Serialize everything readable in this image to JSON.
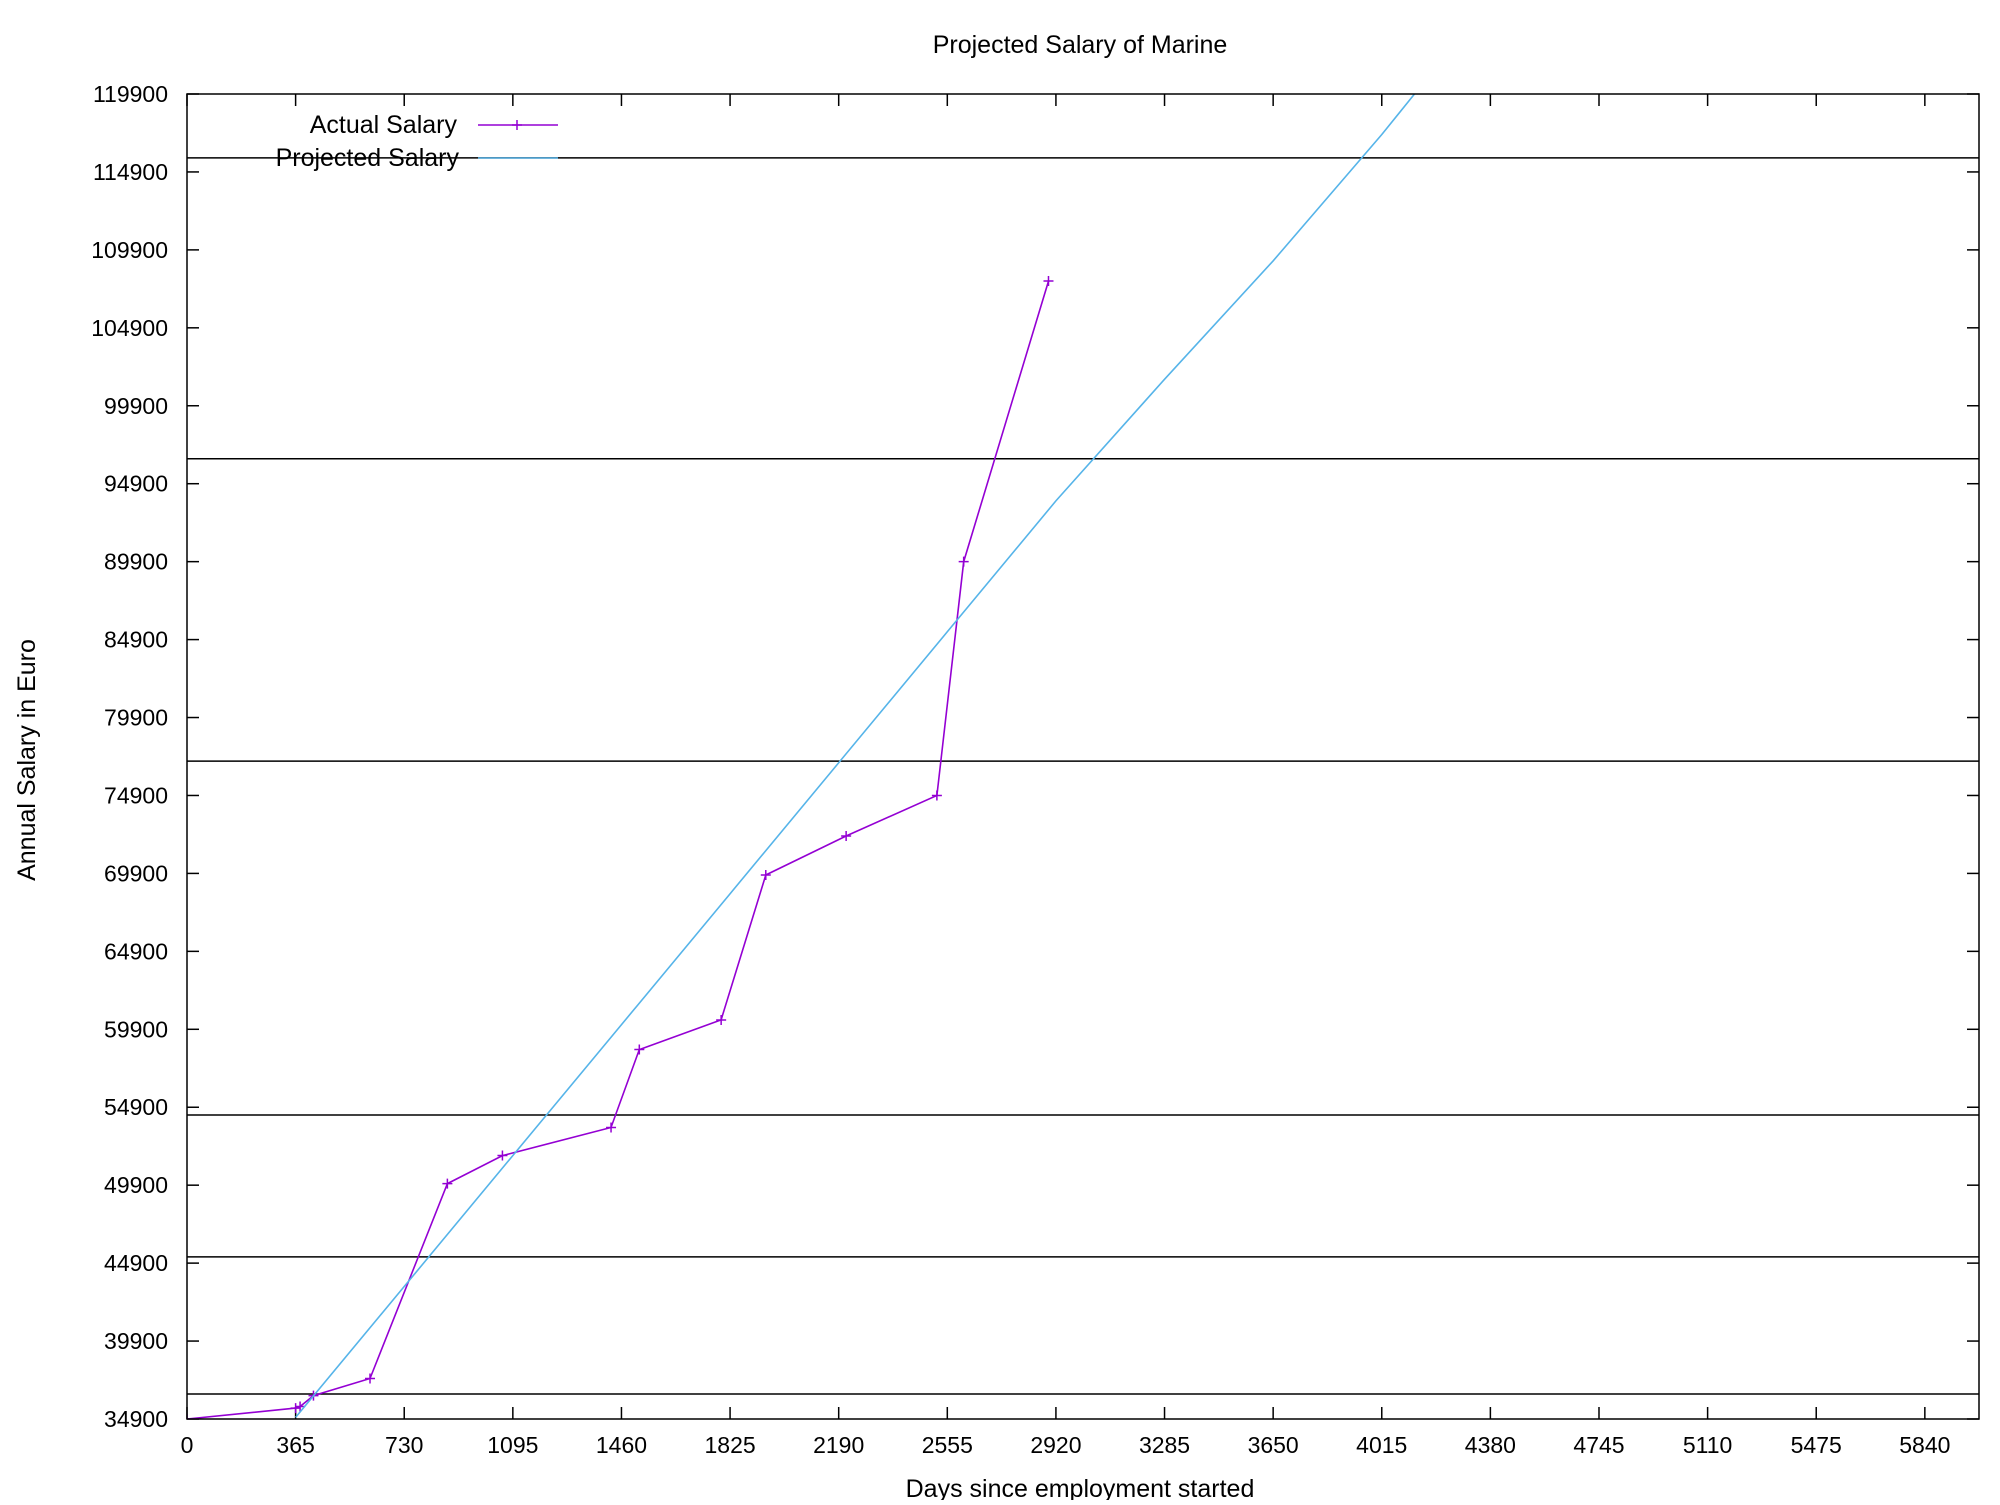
{
  "chart_data": {
    "type": "line",
    "title": "Projected Salary of Marine",
    "xlabel": "Days since employment started",
    "ylabel": "Annual Salary in Euro",
    "xlim": [
      0,
      6022
    ],
    "ylim": [
      34900,
      119900
    ],
    "x_ticks": [
      "0",
      "365",
      "730",
      "1095",
      "1460",
      "1825",
      "2190",
      "2555",
      "2920",
      "3285",
      "3650",
      "4015",
      "4380",
      "4745",
      "5110",
      "5475",
      "5840"
    ],
    "y_ticks": [
      "34900",
      "39900",
      "44900",
      "49900",
      "54900",
      "59900",
      "64900",
      "69900",
      "74900",
      "79900",
      "84900",
      "89900",
      "94900",
      "99900",
      "104900",
      "109900",
      "114900",
      "119900"
    ],
    "grid": false,
    "legend_position": "top-left",
    "reference_lines": [
      36500,
      45300,
      54400,
      77100,
      96500,
      115800
    ],
    "series": [
      {
        "name": "Actual Salary",
        "color": "#9400d3",
        "marker": "+",
        "x": [
          0,
          365,
          380,
          425,
          615,
          875,
          1060,
          1425,
          1520,
          1795,
          1945,
          2215,
          2520,
          2610,
          2895
        ],
        "y": [
          34900,
          35600,
          35700,
          36400,
          37500,
          50000,
          51800,
          53600,
          58600,
          60500,
          69800,
          72300,
          74900,
          89900,
          107900
        ]
      },
      {
        "name": "Projected Salary",
        "color": "#56b4e9",
        "marker": "none",
        "x": [
          365,
          730,
          1095,
          1460,
          1825,
          2190,
          2555,
          2920,
          3285,
          3650,
          4015,
          4125
        ],
        "y": [
          35000,
          43400,
          51800,
          60200,
          68600,
          77000,
          85400,
          93800,
          101600,
          109200,
          117300,
          119900
        ]
      }
    ]
  }
}
